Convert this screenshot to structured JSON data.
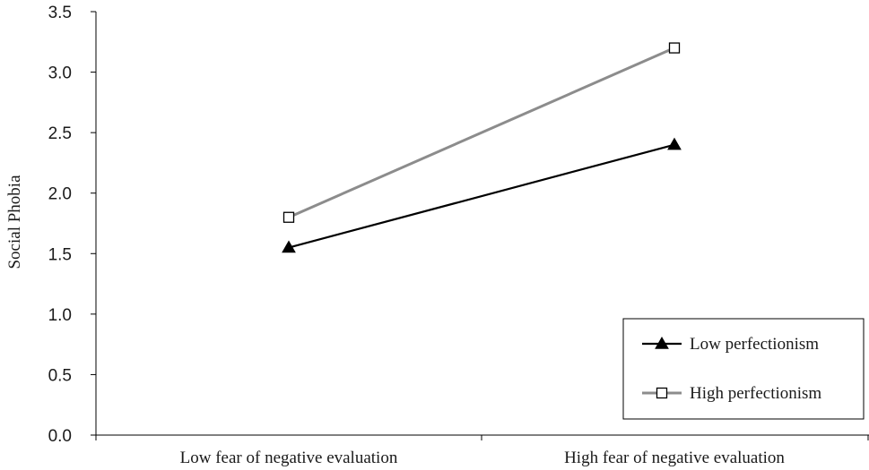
{
  "chart_data": {
    "type": "line",
    "categories": [
      "Low fear of negative evaluation",
      "High fear of negative evaluation"
    ],
    "series": [
      {
        "name": "Low perfectionism",
        "values": [
          1.55,
          2.4
        ],
        "color": "#000000",
        "marker": "filled-triangle"
      },
      {
        "name": "High perfectionism",
        "values": [
          1.8,
          3.2
        ],
        "color": "#8c8c8c",
        "marker": "open-square"
      }
    ],
    "title": "",
    "xlabel": "",
    "ylabel": "Social Phobia",
    "ylim": [
      0,
      3.5
    ],
    "yticks": [
      "0.0",
      "0.5",
      "1.0",
      "1.5",
      "2.0",
      "2.5",
      "3.0",
      "3.5"
    ],
    "grid": false,
    "legend_position": "bottom-right"
  }
}
